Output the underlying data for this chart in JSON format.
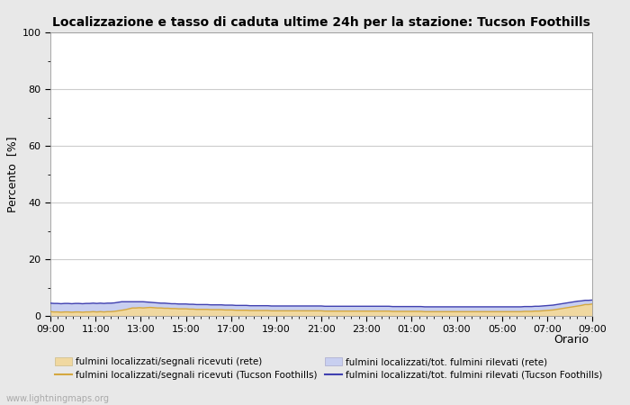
{
  "title": "Localizzazione e tasso di caduta ultime 24h per la stazione: Tucson Foothills",
  "ylabel": "Percento  [%]",
  "xlabel": "Orario",
  "xlabels": [
    "09:00",
    "11:00",
    "13:00",
    "15:00",
    "17:00",
    "19:00",
    "21:00",
    "23:00",
    "01:00",
    "03:00",
    "05:00",
    "07:00",
    "09:00"
  ],
  "ylim": [
    0,
    100
  ],
  "yticks": [
    0,
    20,
    40,
    60,
    80,
    100
  ],
  "yticks_minor": [
    10,
    30,
    50,
    70,
    90
  ],
  "num_points": 145,
  "fill_rete_color": "#f0d8a0",
  "fill_station_color": "#c8cff0",
  "line_rete_color": "#d4a840",
  "line_station_color": "#4040b0",
  "line_width": 1.0,
  "bg_color": "#e8e8e8",
  "plot_bg_color": "#ffffff",
  "grid_color": "#cccccc",
  "watermark": "www.lightningmaps.org",
  "legend_items": [
    {
      "label": "fulmini localizzati/segnali ricevuti (rete)",
      "type": "fill",
      "color": "#f0d8a0"
    },
    {
      "label": "fulmini localizzati/segnali ricevuti (Tucson Foothills)",
      "type": "line",
      "color": "#d4a840"
    },
    {
      "label": "fulmini localizzati/tot. fulmini rilevati (rete)",
      "type": "fill",
      "color": "#c8cff0"
    },
    {
      "label": "fulmini localizzati/tot. fulmini rilevati (Tucson Foothills)",
      "type": "line",
      "color": "#4040b0"
    }
  ],
  "rete_signal_values": [
    1.5,
    1.4,
    1.4,
    1.3,
    1.4,
    1.4,
    1.3,
    1.4,
    1.4,
    1.3,
    1.4,
    1.4,
    1.5,
    1.4,
    1.5,
    1.4,
    1.5,
    1.5,
    1.6,
    1.8,
    2.0,
    2.2,
    2.5,
    2.8,
    2.8,
    2.9,
    2.8,
    2.9,
    3.0,
    2.9,
    2.8,
    2.8,
    2.7,
    2.7,
    2.6,
    2.6,
    2.5,
    2.5,
    2.5,
    2.4,
    2.4,
    2.3,
    2.3,
    2.3,
    2.3,
    2.2,
    2.2,
    2.2,
    2.2,
    2.1,
    2.1,
    2.1,
    2.0,
    2.0,
    2.0,
    2.0,
    1.9,
    1.9,
    1.9,
    1.9,
    1.9,
    1.9,
    1.8,
    1.8,
    1.8,
    1.8,
    1.8,
    1.8,
    1.8,
    1.8,
    1.8,
    1.8,
    1.8,
    1.8,
    1.8,
    1.8,
    1.8,
    1.7,
    1.7,
    1.7,
    1.7,
    1.7,
    1.7,
    1.7,
    1.7,
    1.7,
    1.7,
    1.7,
    1.7,
    1.7,
    1.7,
    1.7,
    1.7,
    1.7,
    1.7,
    1.7,
    1.6,
    1.6,
    1.6,
    1.6,
    1.6,
    1.6,
    1.6,
    1.6,
    1.6,
    1.5,
    1.5,
    1.5,
    1.5,
    1.5,
    1.5,
    1.5,
    1.5,
    1.5,
    1.5,
    1.5,
    1.5,
    1.5,
    1.5,
    1.5,
    1.5,
    1.5,
    1.5,
    1.5,
    1.5,
    1.5,
    1.5,
    1.5,
    1.5,
    1.5,
    1.5,
    1.5,
    1.5,
    1.6,
    1.6,
    1.6,
    1.7,
    1.7,
    1.8,
    1.9,
    2.0,
    2.1,
    2.3,
    2.5,
    2.7,
    2.9,
    3.1,
    3.3,
    3.5,
    3.7,
    4.0,
    4.0,
    4.2
  ],
  "rete_total_values": [
    4.5,
    4.4,
    4.4,
    4.3,
    4.4,
    4.4,
    4.3,
    4.4,
    4.4,
    4.3,
    4.4,
    4.4,
    4.5,
    4.4,
    4.5,
    4.4,
    4.5,
    4.5,
    4.6,
    4.8,
    5.0,
    5.0,
    5.0,
    5.0,
    5.0,
    5.0,
    5.0,
    4.9,
    4.8,
    4.7,
    4.6,
    4.5,
    4.5,
    4.4,
    4.3,
    4.3,
    4.2,
    4.2,
    4.2,
    4.1,
    4.1,
    4.0,
    4.0,
    4.0,
    4.0,
    3.9,
    3.9,
    3.9,
    3.9,
    3.8,
    3.8,
    3.8,
    3.7,
    3.7,
    3.7,
    3.7,
    3.6,
    3.6,
    3.6,
    3.6,
    3.6,
    3.6,
    3.5,
    3.5,
    3.5,
    3.5,
    3.5,
    3.5,
    3.5,
    3.5,
    3.5,
    3.5,
    3.5,
    3.5,
    3.5,
    3.5,
    3.5,
    3.4,
    3.4,
    3.4,
    3.4,
    3.4,
    3.4,
    3.4,
    3.4,
    3.4,
    3.4,
    3.4,
    3.4,
    3.4,
    3.4,
    3.4,
    3.4,
    3.4,
    3.4,
    3.4,
    3.3,
    3.3,
    3.3,
    3.3,
    3.3,
    3.3,
    3.3,
    3.3,
    3.3,
    3.2,
    3.2,
    3.2,
    3.2,
    3.2,
    3.2,
    3.2,
    3.2,
    3.2,
    3.2,
    3.2,
    3.2,
    3.2,
    3.2,
    3.2,
    3.2,
    3.2,
    3.2,
    3.2,
    3.2,
    3.2,
    3.2,
    3.2,
    3.2,
    3.2,
    3.2,
    3.2,
    3.2,
    3.3,
    3.3,
    3.3,
    3.4,
    3.4,
    3.5,
    3.6,
    3.7,
    3.8,
    4.0,
    4.2,
    4.4,
    4.6,
    4.8,
    5.0,
    5.2,
    5.3,
    5.5,
    5.5,
    5.6
  ]
}
